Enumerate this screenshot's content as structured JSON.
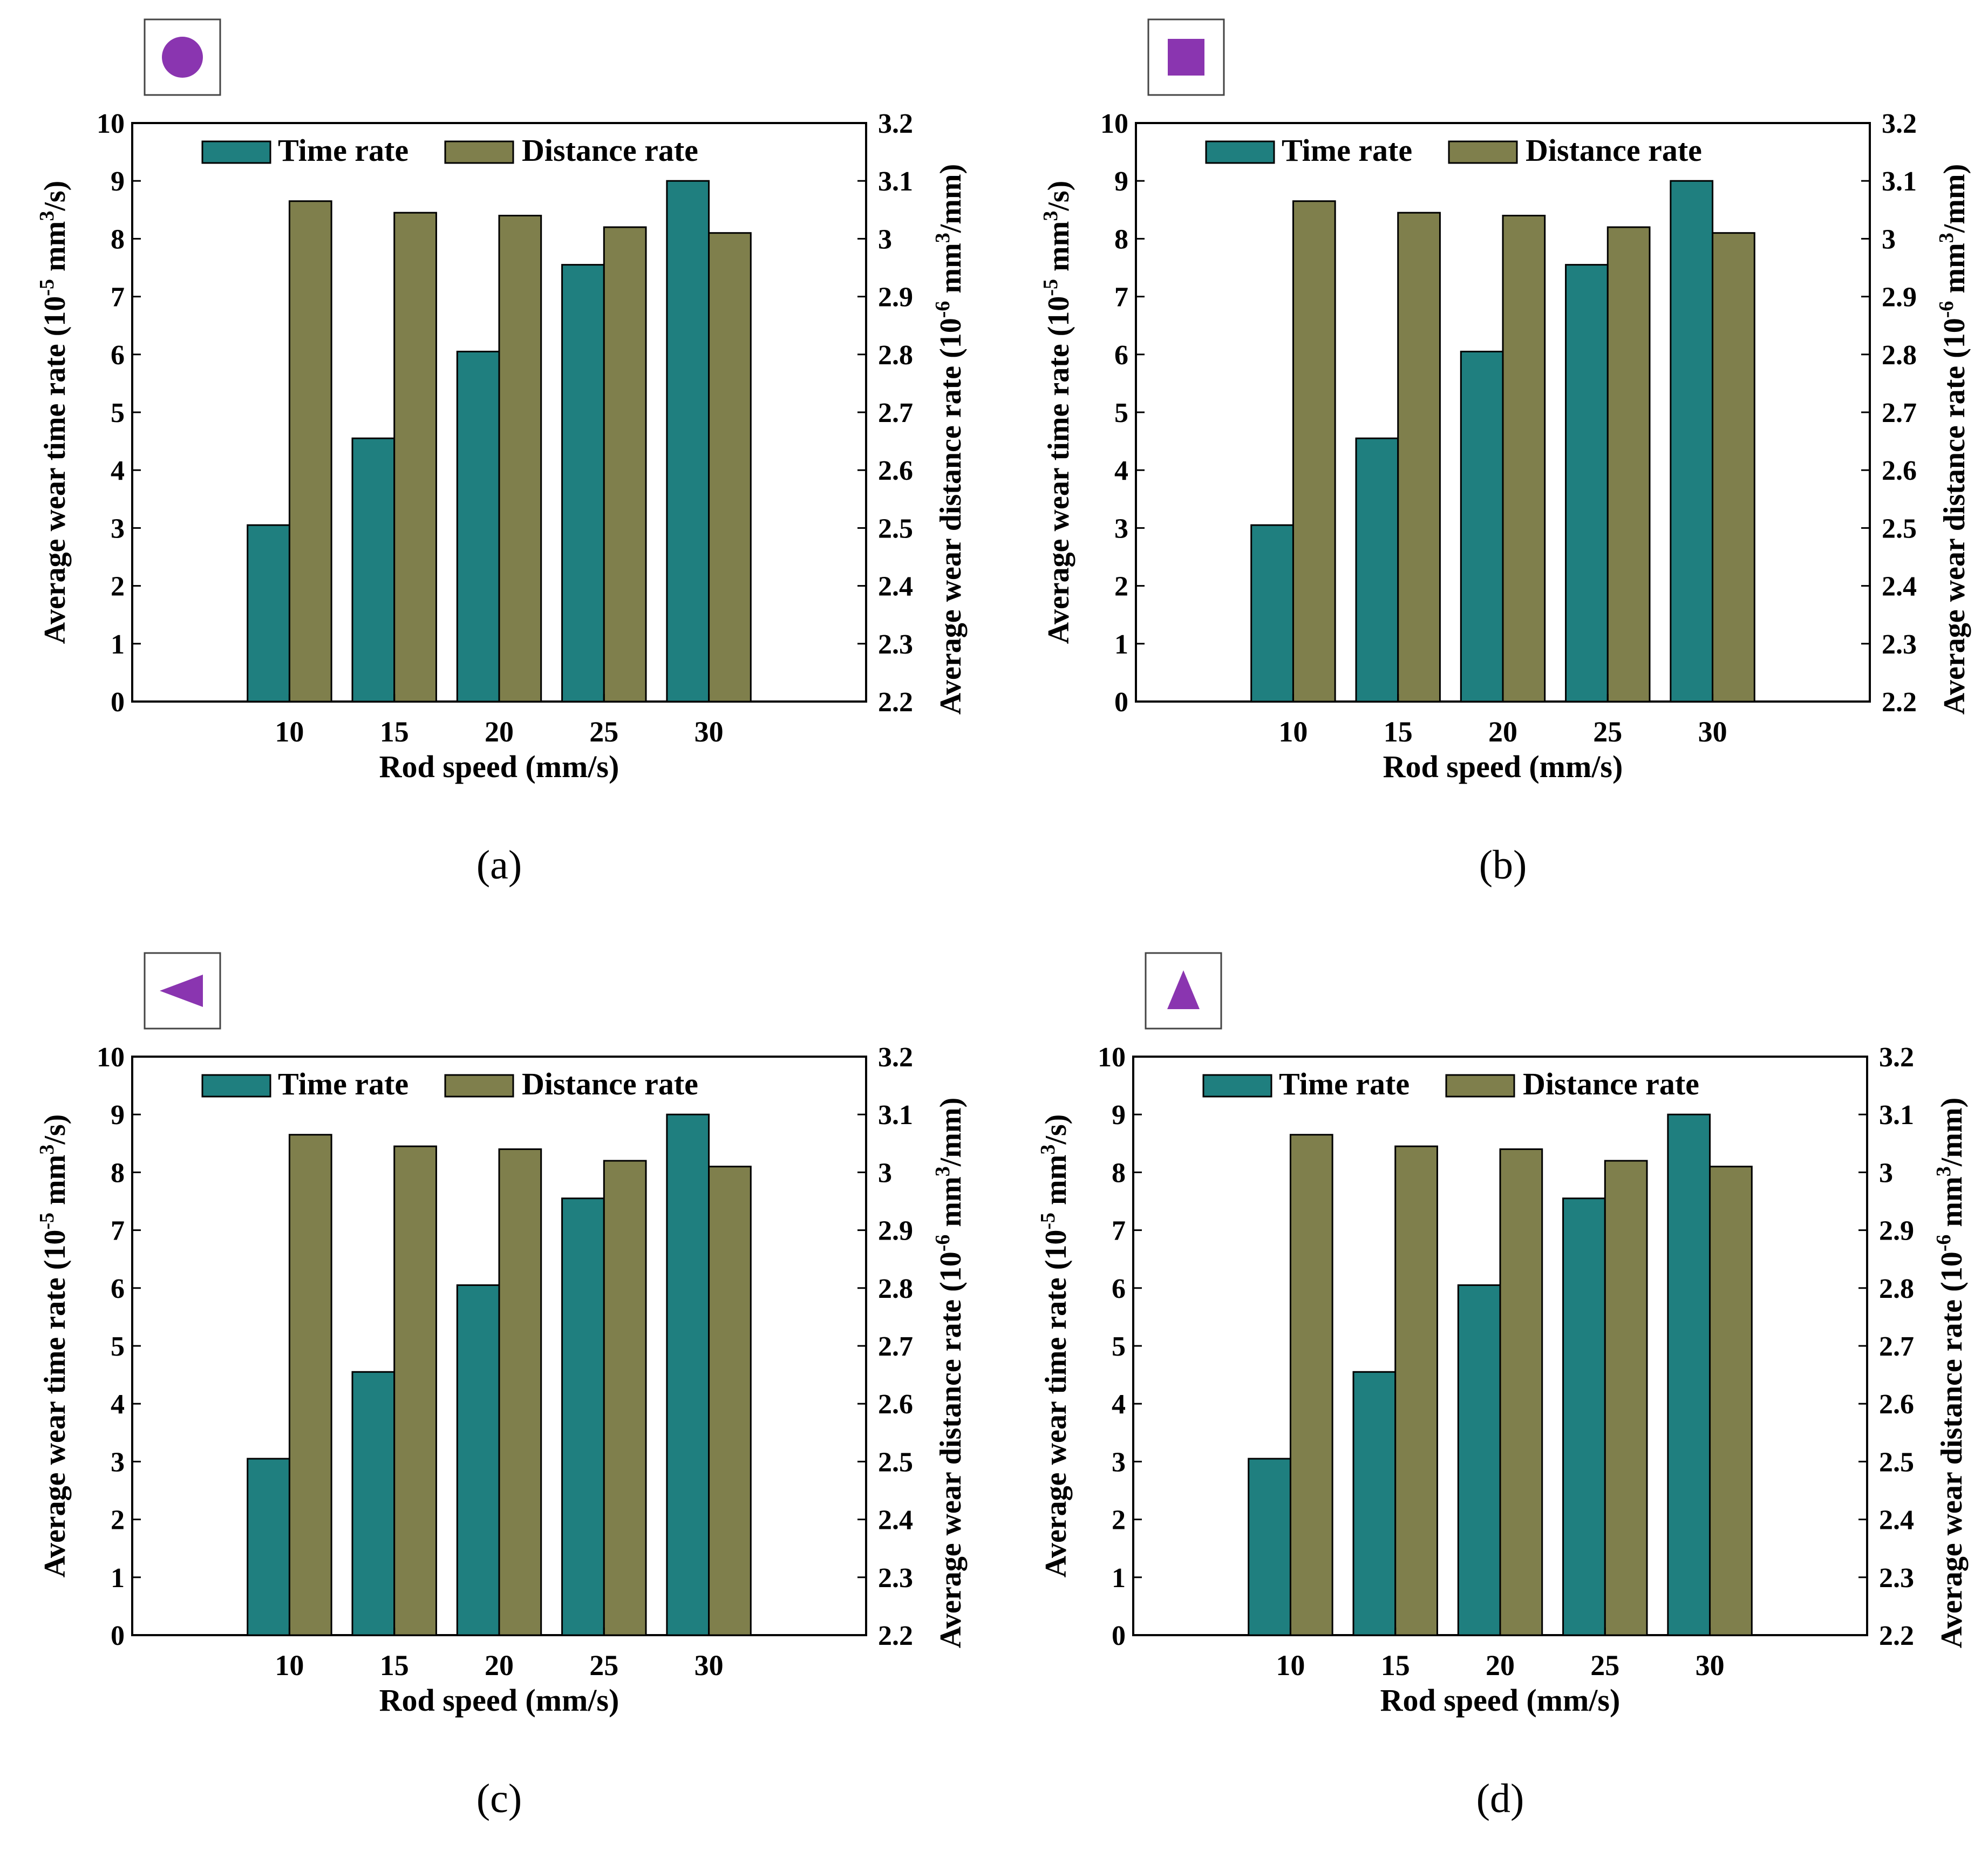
{
  "figure": {
    "panels": [
      {
        "caption": "(a)",
        "symbol_icon": "circle-icon"
      },
      {
        "caption": "(b)",
        "symbol_icon": "square-icon"
      },
      {
        "caption": "(c)",
        "symbol_icon": "left-triangle-icon"
      },
      {
        "caption": "(d)",
        "symbol_icon": "up-triangle-icon"
      }
    ]
  },
  "colors": {
    "time_rate": "#1f7f7f",
    "distance_rate": "#7f7f4c",
    "symbol": "#8a35b0"
  },
  "chart_data": [
    {
      "type": "bar",
      "panel": "(a)",
      "categories": [
        "10",
        "15",
        "20",
        "25",
        "30"
      ],
      "xlabel": "Rod speed (mm/s)",
      "series": [
        {
          "name": "Time rate",
          "axis": "left",
          "values": [
            3.05,
            4.55,
            6.05,
            7.55,
            9.0
          ]
        },
        {
          "name": "Distance rate",
          "axis": "right",
          "values": [
            3.065,
            3.045,
            3.04,
            3.02,
            3.01
          ]
        }
      ],
      "y_left": {
        "label": "Average wear time rate (10⁻⁵ mm³/s)",
        "lim": [
          0,
          10
        ],
        "ticks": [
          "0",
          "1",
          "2",
          "3",
          "4",
          "5",
          "6",
          "7",
          "8",
          "9",
          "10"
        ]
      },
      "y_right": {
        "label": "Average wear distance rate (10⁻⁶ mm³/mm)",
        "lim": [
          2.2,
          3.2
        ],
        "ticks": [
          "2.2",
          "2.3",
          "2.4",
          "2.5",
          "2.6",
          "2.7",
          "2.8",
          "2.9",
          "3",
          "3.1",
          "3.2"
        ]
      },
      "legend": "top",
      "grid": false
    },
    {
      "type": "bar",
      "panel": "(b)",
      "categories": [
        "10",
        "15",
        "20",
        "25",
        "30"
      ],
      "xlabel": "Rod speed (mm/s)",
      "series": [
        {
          "name": "Time rate",
          "axis": "left",
          "values": [
            3.05,
            4.55,
            6.05,
            7.55,
            9.0
          ]
        },
        {
          "name": "Distance rate",
          "axis": "right",
          "values": [
            3.065,
            3.045,
            3.04,
            3.02,
            3.01
          ]
        }
      ],
      "y_left": {
        "label": "Average wear time rate (10⁻⁵ mm³/s)",
        "lim": [
          0,
          10
        ],
        "ticks": [
          "0",
          "1",
          "2",
          "3",
          "4",
          "5",
          "6",
          "7",
          "8",
          "9",
          "10"
        ]
      },
      "y_right": {
        "label": "Average wear distance rate (10⁻⁶ mm³/mm)",
        "lim": [
          2.2,
          3.2
        ],
        "ticks": [
          "2.2",
          "2.3",
          "2.4",
          "2.5",
          "2.6",
          "2.7",
          "2.8",
          "2.9",
          "3",
          "3.1",
          "3.2"
        ]
      },
      "legend": "top",
      "grid": false
    },
    {
      "type": "bar",
      "panel": "(c)",
      "categories": [
        "10",
        "15",
        "20",
        "25",
        "30"
      ],
      "xlabel": "Rod speed (mm/s)",
      "series": [
        {
          "name": "Time rate",
          "axis": "left",
          "values": [
            3.05,
            4.55,
            6.05,
            7.55,
            9.0
          ]
        },
        {
          "name": "Distance rate",
          "axis": "right",
          "values": [
            3.065,
            3.045,
            3.04,
            3.02,
            3.01
          ]
        }
      ],
      "y_left": {
        "label": "Average wear time rate (10⁻⁵ mm³/s)",
        "lim": [
          0,
          10
        ],
        "ticks": [
          "0",
          "1",
          "2",
          "3",
          "4",
          "5",
          "6",
          "7",
          "8",
          "9",
          "10"
        ]
      },
      "y_right": {
        "label": "Average wear distance rate (10⁻⁶ mm³/mm)",
        "lim": [
          2.2,
          3.2
        ],
        "ticks": [
          "2.2",
          "2.3",
          "2.4",
          "2.5",
          "2.6",
          "2.7",
          "2.8",
          "2.9",
          "3",
          "3.1",
          "3.2"
        ]
      },
      "legend": "top",
      "grid": false
    },
    {
      "type": "bar",
      "panel": "(d)",
      "categories": [
        "10",
        "15",
        "20",
        "25",
        "30"
      ],
      "xlabel": "Rod speed (mm/s)",
      "series": [
        {
          "name": "Time rate",
          "axis": "left",
          "values": [
            3.05,
            4.55,
            6.05,
            7.55,
            9.0
          ]
        },
        {
          "name": "Distance rate",
          "axis": "right",
          "values": [
            3.065,
            3.045,
            3.04,
            3.02,
            3.01
          ]
        }
      ],
      "y_left": {
        "label": "Average wear time rate (10⁻⁵ mm³/s)",
        "lim": [
          0,
          10
        ],
        "ticks": [
          "0",
          "1",
          "2",
          "3",
          "4",
          "5",
          "6",
          "7",
          "8",
          "9",
          "10"
        ]
      },
      "y_right": {
        "label": "Average wear distance rate (10⁻⁶ mm³/mm)",
        "lim": [
          2.2,
          3.2
        ],
        "ticks": [
          "2.2",
          "2.3",
          "2.4",
          "2.5",
          "2.6",
          "2.7",
          "2.8",
          "2.9",
          "3",
          "3.1",
          "3.2"
        ]
      },
      "legend": "top",
      "grid": false
    }
  ]
}
